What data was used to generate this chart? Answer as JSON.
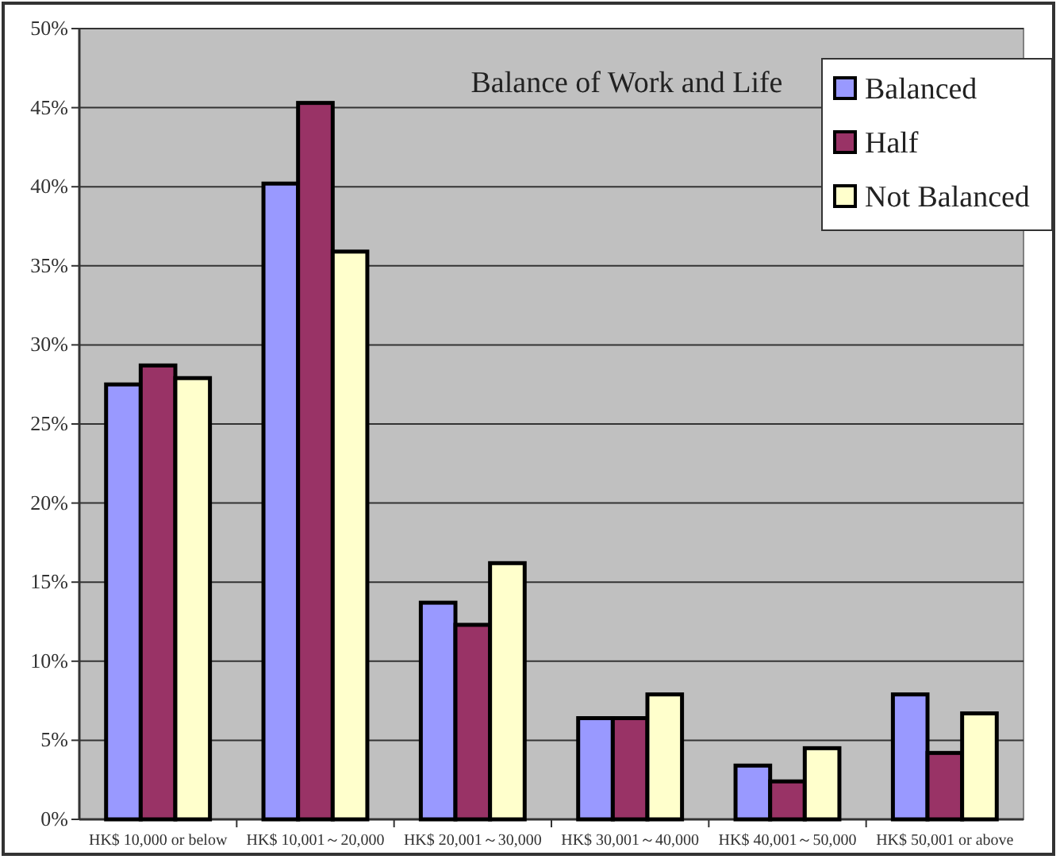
{
  "chart_data": {
    "type": "bar",
    "title": "Balance of Work and Life",
    "categories": [
      "HK$ 10,000 or below",
      "HK$ 10,001～20,000",
      "HK$ 20,001～30,000",
      "HK$ 30,001～40,000",
      "HK$ 40,001～50,000",
      "HK$ 50,001 or above"
    ],
    "series": [
      {
        "name": "Balanced",
        "color": "#9999ff",
        "values": [
          27.5,
          40.2,
          13.7,
          6.4,
          3.4,
          7.9
        ]
      },
      {
        "name": "Half",
        "color": "#993366",
        "values": [
          28.7,
          45.3,
          12.3,
          6.4,
          2.4,
          4.2
        ]
      },
      {
        "name": "Not Balanced",
        "color": "#ffffcc",
        "values": [
          27.9,
          35.9,
          16.2,
          7.9,
          4.5,
          6.7
        ]
      }
    ],
    "ylim": [
      0,
      50
    ],
    "yticks": [
      {
        "value": 0,
        "label": "0%"
      },
      {
        "value": 5,
        "label": "5%"
      },
      {
        "value": 10,
        "label": "10%"
      },
      {
        "value": 15,
        "label": "15%"
      },
      {
        "value": 20,
        "label": "20%"
      },
      {
        "value": 25,
        "label": "25%"
      },
      {
        "value": 30,
        "label": "30%"
      },
      {
        "value": 35,
        "label": "35%"
      },
      {
        "value": 40,
        "label": "40%"
      },
      {
        "value": 45,
        "label": "45%"
      },
      {
        "value": 50,
        "label": "50%"
      }
    ],
    "grid": "y",
    "legend": "top right"
  }
}
